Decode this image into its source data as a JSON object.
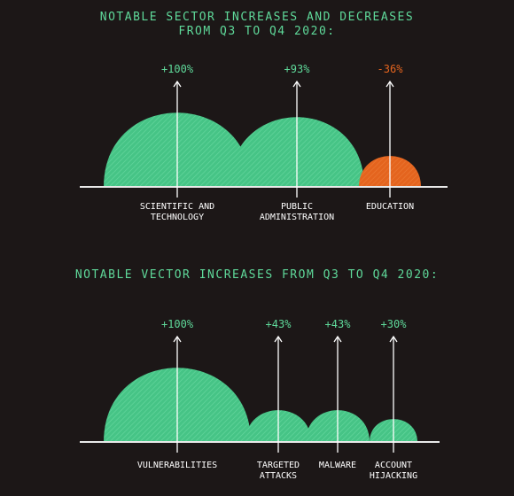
{
  "colors": {
    "background": "#1c1717",
    "accent_green": "#5fd99a",
    "increase_fill": "#46c486",
    "decrease_fill": "#e4641e",
    "axis": "#e9e9e9",
    "text": "#ffffff"
  },
  "chart_data": [
    {
      "type": "area",
      "title_line1": "NOTABLE SECTOR INCREASES AND DECREASES",
      "title_line2": "FROM Q3 TO Q4 2020:",
      "categories": [
        "SCIENTIFIC AND\nTECHNOLOGY",
        "PUBLIC\nADMINISTRATION",
        "EDUCATION"
      ],
      "values": [
        100,
        93,
        -36
      ],
      "value_labels": [
        "+100%",
        "+93%",
        "-36%"
      ],
      "direction": [
        "increase",
        "increase",
        "decrease"
      ]
    },
    {
      "type": "area",
      "title_line1": "NOTABLE VECTOR INCREASES FROM Q3 TO Q4 2020:",
      "categories": [
        "VULNERABILITIES",
        "TARGETED\nATTACKS",
        "MALWARE",
        "ACCOUNT\nHIJACKING"
      ],
      "values": [
        100,
        43,
        43,
        30
      ],
      "value_labels": [
        "+100%",
        "+43%",
        "+43%",
        "+30%"
      ],
      "direction": [
        "increase",
        "increase",
        "increase",
        "increase"
      ]
    }
  ]
}
